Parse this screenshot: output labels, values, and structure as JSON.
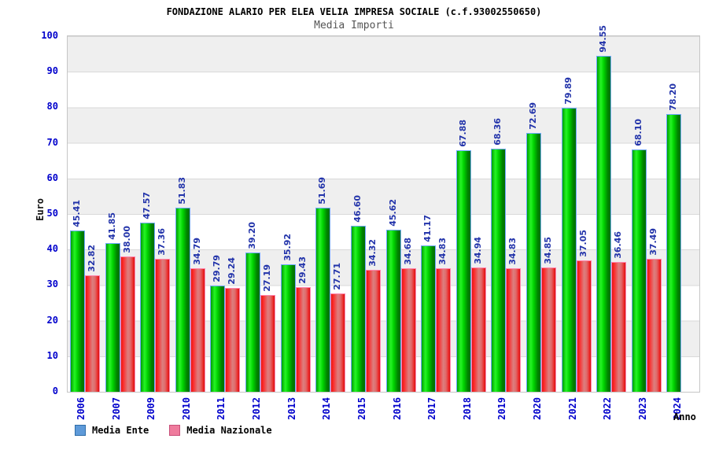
{
  "header": {
    "title": "FONDAZIONE ALARIO PER ELEA VELIA IMPRESA SOCIALE (c.f.93002550650)",
    "subtitle": "Media Importi"
  },
  "chart_data": {
    "type": "bar",
    "title": "Media Importi",
    "categories": [
      "2006",
      "2007",
      "2009",
      "2010",
      "2011",
      "2012",
      "2013",
      "2014",
      "2015",
      "2016",
      "2017",
      "2018",
      "2019",
      "2020",
      "2021",
      "2022",
      "2023",
      "2024"
    ],
    "series": [
      {
        "name": "Media Ente",
        "bar_color": "#00cc00",
        "legend_color": "#5e9ad9",
        "values": [
          45.41,
          41.85,
          47.57,
          51.83,
          29.79,
          39.2,
          35.92,
          51.69,
          46.6,
          45.62,
          41.17,
          67.88,
          68.36,
          72.69,
          79.89,
          94.55,
          68.1,
          78.2
        ]
      },
      {
        "name": "Media Nazionale",
        "bar_color": "#ee3333",
        "legend_color": "#ef7b9d",
        "values": [
          32.82,
          38.0,
          37.36,
          34.79,
          29.24,
          27.19,
          29.43,
          27.71,
          34.32,
          34.68,
          34.83,
          34.94,
          34.83,
          34.85,
          37.05,
          36.46,
          37.49,
          null
        ]
      }
    ],
    "xlabel": "Anno",
    "ylabel": "Euro",
    "ylim": [
      0,
      100
    ],
    "yticks": [
      0,
      10,
      20,
      30,
      40,
      50,
      60,
      70,
      80,
      90,
      100
    ],
    "grid": "horizontal-bands-alternating-gray-white",
    "legend_position": "bottom-left",
    "value_labels": "rotated-90-above-bars"
  },
  "colors": {
    "tick_label": "#0000cc",
    "value_label": "#2233aa",
    "band_gray": "#efefef",
    "grid_line": "#d9d9d9",
    "green_bar_border": "#6fa8ff",
    "red_bar_border": "#ff85ad"
  }
}
